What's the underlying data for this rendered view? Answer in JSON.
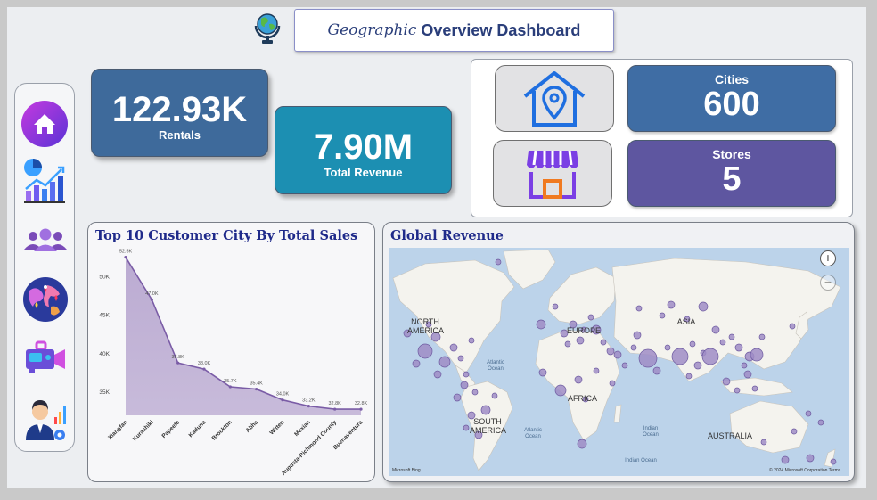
{
  "header": {
    "title_italic": "Geographic",
    "title_main": "Overview Dashboard",
    "logo_icon": "globe-icon"
  },
  "sidebar": {
    "items": [
      {
        "name": "home",
        "icon": "home-icon"
      },
      {
        "name": "analytics",
        "icon": "chart-icon"
      },
      {
        "name": "customers",
        "icon": "users-icon"
      },
      {
        "name": "geography",
        "icon": "world-map-icon"
      },
      {
        "name": "films",
        "icon": "video-camera-icon"
      },
      {
        "name": "staff",
        "icon": "staff-report-icon"
      }
    ]
  },
  "kpis": {
    "rentals": {
      "value": "122.93K",
      "label": "Rentals"
    },
    "revenue": {
      "value": "7.90M",
      "label": "Total Revenue"
    }
  },
  "stats": {
    "cities": {
      "label": "Cities",
      "value": "600",
      "icon": "house-location-icon"
    },
    "stores": {
      "label": "Stores",
      "value": "5",
      "icon": "store-icon"
    }
  },
  "colors": {
    "rentals_card": "#3e6a9b",
    "revenue_card": "#1c8fb2",
    "cities_card": "#3f6da4",
    "stores_card": "#5e56a0",
    "series": "#7a5ca6",
    "area_fill": "#b8a7d0",
    "map_bubble": "#9f8cc6"
  },
  "chart_data": {
    "type": "area",
    "title": "Top 10 Customer City By Total Sales",
    "categories": [
      "Xiangfan",
      "Kurashiki",
      "Papeete",
      "Kaduna",
      "Brockton",
      "Abha",
      "Witten",
      "Mexian",
      "Augusta-Richmond County",
      "Buenaventura"
    ],
    "values": [
      52.5,
      47.0,
      38.8,
      38.0,
      35.7,
      35.4,
      34.0,
      33.2,
      32.8,
      32.8
    ],
    "data_labels": [
      "52.5K",
      "47.0K",
      "38.8K",
      "38.0K",
      "35.7K",
      "35.4K",
      "34.0K",
      "33.2K",
      "32.8K",
      "32.8K"
    ],
    "y_ticks": [
      50,
      45,
      40,
      35
    ],
    "y_tick_labels": [
      "50K",
      "45K",
      "40K",
      "35K"
    ],
    "ylim": [
      32.0,
      53.5
    ],
    "grid": false,
    "legend": "none"
  },
  "map": {
    "title": "Global Revenue",
    "continents": [
      "NORTH AMERICA",
      "EUROPE",
      "ASIA",
      "AFRICA",
      "SOUTH AMERICA",
      "AUSTRALIA"
    ],
    "oceans": [
      "Atlantic Ocean",
      "Atlantic Ocean",
      "Indian Ocean",
      "Indian Ocean"
    ],
    "attribution_left": "Microsoft Bing",
    "attribution_right": "© 2024 Microsoft Corporation  Terms",
    "zoom_in": "+",
    "zoom_out": "−"
  }
}
